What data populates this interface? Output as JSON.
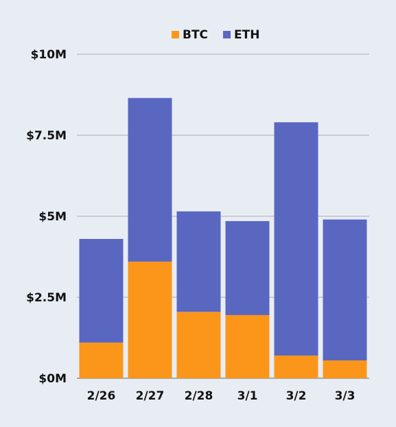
{
  "chart_data": {
    "type": "bar",
    "stacked": true,
    "categories": [
      "2/26",
      "2/27",
      "2/28",
      "3/1",
      "3/2",
      "3/3"
    ],
    "series": [
      {
        "name": "BTC",
        "color": "#fb961a",
        "values": [
          1.1,
          3.6,
          2.05,
          1.95,
          0.7,
          0.55
        ]
      },
      {
        "name": "ETH",
        "color": "#5a67c1",
        "values": [
          3.2,
          5.05,
          3.1,
          2.9,
          7.2,
          4.35
        ]
      }
    ],
    "ylim": [
      0,
      10
    ],
    "yticks": [
      0,
      2.5,
      5,
      7.5,
      10
    ],
    "ytick_labels": [
      "$0M",
      "$2.5M",
      "$5M",
      "$7.5M",
      "$10M"
    ],
    "grid": true,
    "legend": "top-center",
    "title": "",
    "xlabel": "",
    "ylabel": ""
  }
}
